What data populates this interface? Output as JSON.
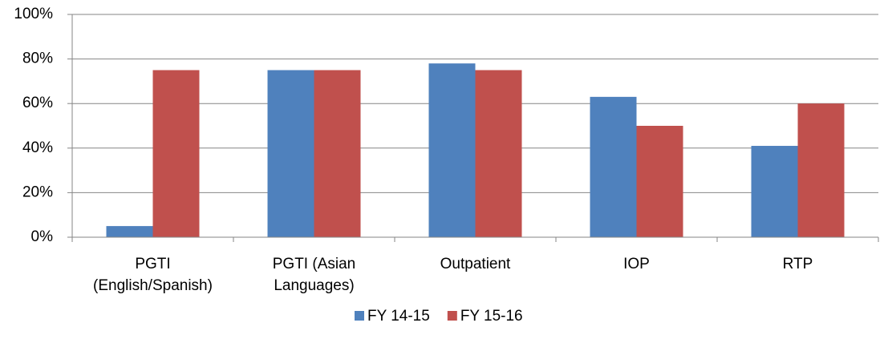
{
  "chart_data": {
    "type": "bar",
    "categories": [
      "PGTI\n(English/Spanish)",
      "PGTI (Asian\nLanguages)",
      "Outpatient",
      "IOP",
      "RTP"
    ],
    "series": [
      {
        "name": "FY 14-15",
        "color": "#4f81bd",
        "values": [
          5,
          75,
          78,
          63,
          41
        ]
      },
      {
        "name": "FY 15-16",
        "color": "#c0504d",
        "values": [
          75,
          75,
          75,
          50,
          60
        ]
      }
    ],
    "ylim": [
      0,
      100
    ],
    "yticks": [
      {
        "value": 0,
        "label": "0%"
      },
      {
        "value": 20,
        "label": "20%"
      },
      {
        "value": 40,
        "label": "40%"
      },
      {
        "value": 60,
        "label": "60%"
      },
      {
        "value": 80,
        "label": "80%"
      },
      {
        "value": 100,
        "label": "100%"
      }
    ],
    "grid": true,
    "legend": "bottom"
  }
}
